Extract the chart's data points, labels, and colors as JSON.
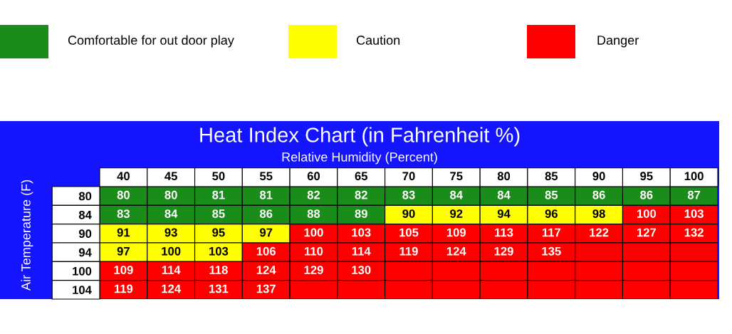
{
  "chart_data": {
    "type": "heatmap",
    "title": "Heat Index Chart (in Fahrenheit %)",
    "xlabel": "Relative Humidity (Percent)",
    "ylabel": "Air Temperature (F)",
    "categories": [
      "40",
      "45",
      "50",
      "55",
      "60",
      "65",
      "70",
      "75",
      "80",
      "85",
      "90",
      "95",
      "100"
    ],
    "y_categories": [
      "80",
      "84",
      "90",
      "94",
      "100",
      "104"
    ],
    "cells": [
      [
        80,
        80,
        81,
        81,
        82,
        82,
        83,
        84,
        84,
        85,
        86,
        86,
        87
      ],
      [
        83,
        84,
        85,
        86,
        88,
        89,
        90,
        92,
        94,
        96,
        98,
        100,
        103
      ],
      [
        91,
        93,
        95,
        97,
        100,
        103,
        105,
        109,
        113,
        117,
        122,
        127,
        132
      ],
      [
        97,
        100,
        103,
        106,
        110,
        114,
        119,
        124,
        129,
        135,
        null,
        null,
        null
      ],
      [
        109,
        114,
        118,
        124,
        129,
        130,
        null,
        null,
        null,
        null,
        null,
        null,
        null
      ],
      [
        119,
        124,
        131,
        137,
        null,
        null,
        null,
        null,
        null,
        null,
        null,
        null,
        null
      ]
    ],
    "colors": [
      [
        "#1a8c1a",
        "#1a8c1a",
        "#1a8c1a",
        "#1a8c1a",
        "#1a8c1a",
        "#1a8c1a",
        "#1a8c1a",
        "#1a8c1a",
        "#1a8c1a",
        "#1a8c1a",
        "#1a8c1a",
        "#1a8c1a",
        "#1a8c1a"
      ],
      [
        "#1a8c1a",
        "#1a8c1a",
        "#1a8c1a",
        "#1a8c1a",
        "#1a8c1a",
        "#1a8c1a",
        "#ffff00",
        "#ffff00",
        "#ffff00",
        "#ffff00",
        "#ffff00",
        "#ff0000",
        "#ff0000"
      ],
      [
        "#ffff00",
        "#ffff00",
        "#ffff00",
        "#ffff00",
        "#ff0000",
        "#ff0000",
        "#ff0000",
        "#ff0000",
        "#ff0000",
        "#ff0000",
        "#ff0000",
        "#ff0000",
        "#ff0000"
      ],
      [
        "#ffff00",
        "#ffff00",
        "#ffff00",
        "#ff0000",
        "#ff0000",
        "#ff0000",
        "#ff0000",
        "#ff0000",
        "#ff0000",
        "#ff0000",
        "#ff0000",
        "#ff0000",
        "#ff0000"
      ],
      [
        "#ff0000",
        "#ff0000",
        "#ff0000",
        "#ff0000",
        "#ff0000",
        "#ff0000",
        "#ff0000",
        "#ff0000",
        "#ff0000",
        "#ff0000",
        "#ff0000",
        "#ff0000",
        "#ff0000"
      ],
      [
        "#ff0000",
        "#ff0000",
        "#ff0000",
        "#ff0000",
        "#ff0000",
        "#ff0000",
        "#ff0000",
        "#ff0000",
        "#ff0000",
        "#ff0000",
        "#ff0000",
        "#ff0000",
        "#ff0000"
      ]
    ],
    "annotations": [
      "Comfortable for out door play",
      "Caution",
      "Danger"
    ],
    "data_labels": true
  }
}
